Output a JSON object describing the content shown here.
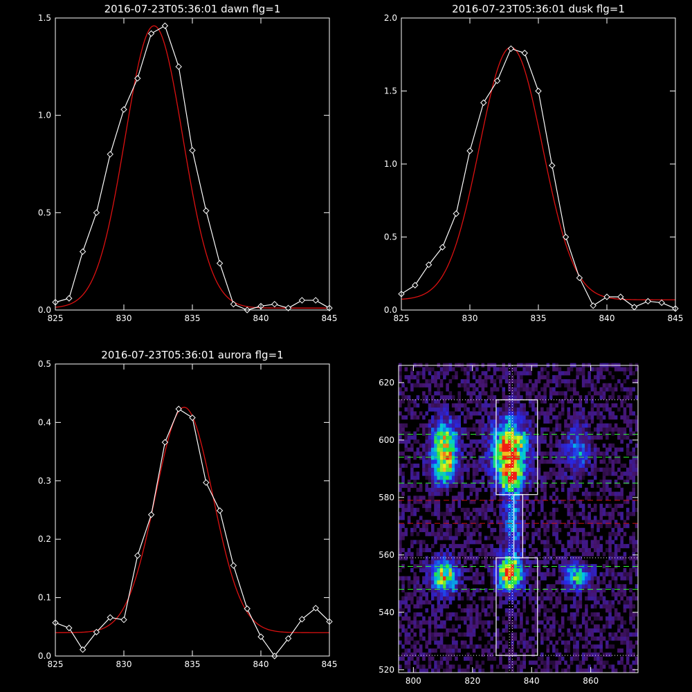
{
  "colors": {
    "background": "#000000",
    "axes": "#ffffff",
    "data_line": "#ffffff",
    "fit_line": "#dd1111",
    "green_dash": "#33ff33",
    "red_dash": "#cc1111"
  },
  "chart_data": [
    {
      "type": "line",
      "title": "2016-07-23T05:36:01 dawn flg=1",
      "xlim": [
        825,
        845
      ],
      "ylim": [
        0,
        1.5
      ],
      "xticks": [
        "825",
        "830",
        "835",
        "840",
        "845"
      ],
      "yticks": [
        "0.0",
        "0.5",
        "1.0",
        "1.5"
      ],
      "series": [
        {
          "style": "white line with diamond markers",
          "x": [
            825,
            826,
            827,
            828,
            829,
            830,
            831,
            832,
            833,
            834,
            835,
            836,
            837,
            838,
            839,
            840,
            841,
            842,
            843,
            844,
            845
          ],
          "y": [
            0.04,
            0.06,
            0.3,
            0.5,
            0.8,
            1.03,
            1.19,
            1.42,
            1.46,
            1.25,
            0.82,
            0.51,
            0.24,
            0.03,
            0.0,
            0.02,
            0.03,
            0.01,
            0.05,
            0.05,
            0.01
          ]
        },
        {
          "style": "red gaussian fit",
          "gaussian": {
            "amplitude": 1.45,
            "center": 832.2,
            "sigma": 2.1,
            "offset": 0.01
          }
        }
      ]
    },
    {
      "type": "line",
      "title": "2016-07-23T05:36:01 dusk flg=1",
      "xlim": [
        825,
        845
      ],
      "ylim": [
        0,
        2.0
      ],
      "xticks": [
        "825",
        "830",
        "835",
        "840",
        "845"
      ],
      "yticks": [
        "0.0",
        "0.5",
        "1.0",
        "1.5",
        "2.0"
      ],
      "series": [
        {
          "style": "white line with diamond markers",
          "x": [
            825,
            826,
            827,
            828,
            829,
            830,
            831,
            832,
            833,
            834,
            835,
            836,
            837,
            838,
            839,
            840,
            841,
            842,
            843,
            844,
            845
          ],
          "y": [
            0.11,
            0.17,
            0.31,
            0.43,
            0.66,
            1.09,
            1.42,
            1.57,
            1.79,
            1.76,
            1.5,
            0.99,
            0.5,
            0.22,
            0.03,
            0.09,
            0.09,
            0.02,
            0.06,
            0.05,
            0.01
          ]
        },
        {
          "style": "red gaussian fit",
          "gaussian": {
            "amplitude": 1.73,
            "center": 833.0,
            "sigma": 2.3,
            "offset": 0.07
          }
        }
      ]
    },
    {
      "type": "line",
      "title": "2016-07-23T05:36:01 aurora flg=1",
      "xlim": [
        825,
        845
      ],
      "ylim": [
        0,
        0.5
      ],
      "xticks": [
        "825",
        "830",
        "835",
        "840",
        "845"
      ],
      "yticks": [
        "0.0",
        "0.1",
        "0.2",
        "0.3",
        "0.4",
        "0.5"
      ],
      "series": [
        {
          "style": "white line with diamond markers",
          "x": [
            825,
            826,
            827,
            828,
            829,
            830,
            831,
            832,
            833,
            834,
            835,
            836,
            837,
            838,
            839,
            840,
            841,
            842,
            843,
            844,
            845
          ],
          "y": [
            0.057,
            0.048,
            0.011,
            0.041,
            0.066,
            0.062,
            0.172,
            0.242,
            0.366,
            0.423,
            0.408,
            0.297,
            0.249,
            0.155,
            0.081,
            0.033,
            0.0,
            0.03,
            0.063,
            0.082,
            0.059
          ]
        },
        {
          "style": "red gaussian fit",
          "gaussian": {
            "amplitude": 0.386,
            "center": 834.4,
            "sigma": 2.1,
            "offset": 0.04
          }
        }
      ]
    },
    {
      "type": "heatmap",
      "title": "",
      "xlim": [
        795,
        876
      ],
      "ylim": [
        519,
        626
      ],
      "xticks": [
        "800",
        "820",
        "840",
        "860"
      ],
      "yticks": [
        "520",
        "540",
        "560",
        "580",
        "600",
        "620"
      ],
      "blobs": [
        {
          "cx": 810,
          "cy": 597,
          "rx": 3,
          "ry": 6,
          "peak": 0.85
        },
        {
          "cx": 810,
          "cy": 588,
          "rx": 3,
          "ry": 3,
          "peak": 0.45
        },
        {
          "cx": 832,
          "cy": 596,
          "rx": 4,
          "ry": 7,
          "peak": 1.0
        },
        {
          "cx": 832,
          "cy": 586,
          "rx": 3,
          "ry": 3,
          "peak": 0.55
        },
        {
          "cx": 855,
          "cy": 596,
          "rx": 3,
          "ry": 6,
          "peak": 0.35
        },
        {
          "cx": 810,
          "cy": 552,
          "rx": 3,
          "ry": 4,
          "peak": 0.8
        },
        {
          "cx": 832,
          "cy": 553,
          "rx": 3,
          "ry": 4,
          "peak": 1.0
        },
        {
          "cx": 855,
          "cy": 552,
          "rx": 3,
          "ry": 3,
          "peak": 0.6
        },
        {
          "cx": 833,
          "cy": 572,
          "rx": 2,
          "ry": 9,
          "peak": 0.4
        }
      ],
      "vertical_dotted_x": [
        832.5,
        833.5
      ],
      "horizontal_dotted_y": [
        614,
        559,
        525
      ],
      "green_dash_y": [
        602,
        594,
        585,
        556,
        548
      ],
      "red_dash_y": [
        579,
        571
      ],
      "boxes": [
        {
          "x0": 828,
          "x1": 842,
          "y0": 581,
          "y1": 614
        },
        {
          "x0": 828,
          "x1": 842,
          "y0": 525,
          "y1": 559
        },
        {
          "x0": 834,
          "x1": 837,
          "y0": 559,
          "y1": 581
        }
      ]
    }
  ]
}
